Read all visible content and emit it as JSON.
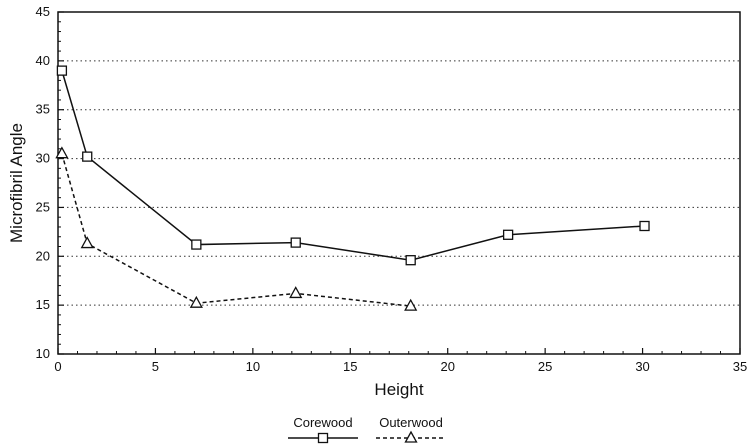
{
  "chart_data": {
    "type": "line",
    "title": "",
    "xlabel": "Height",
    "ylabel": "Microfibril Angle",
    "xlim": [
      0,
      35
    ],
    "ylim": [
      10,
      45
    ],
    "x_ticks": [
      "0",
      "5",
      "10",
      "15",
      "20",
      "25",
      "30",
      "35"
    ],
    "y_ticks": [
      "10",
      "15",
      "20",
      "25",
      "30",
      "35",
      "40",
      "45"
    ],
    "grid": "horizontal-dotted",
    "legend_placement": "bottom-center",
    "series": [
      {
        "name": "Corewood",
        "marker": "square",
        "line_style": "solid",
        "x": [
          0.2,
          1.5,
          7.1,
          12.2,
          18.1,
          23.1,
          30.1
        ],
        "values": [
          39.0,
          30.2,
          21.2,
          21.4,
          19.6,
          22.2,
          23.1
        ]
      },
      {
        "name": "Outerwood",
        "marker": "triangle",
        "line_style": "dashed",
        "x": [
          0.2,
          1.5,
          7.1,
          12.2,
          18.1
        ],
        "values": [
          30.5,
          21.3,
          15.2,
          16.2,
          14.9
        ]
      }
    ]
  }
}
